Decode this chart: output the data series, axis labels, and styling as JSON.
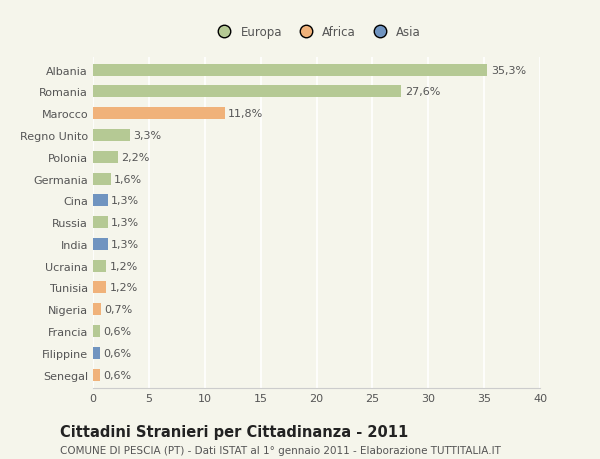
{
  "countries": [
    "Albania",
    "Romania",
    "Marocco",
    "Regno Unito",
    "Polonia",
    "Germania",
    "Cina",
    "Russia",
    "India",
    "Ucraina",
    "Tunisia",
    "Nigeria",
    "Francia",
    "Filippine",
    "Senegal"
  ],
  "values": [
    35.3,
    27.6,
    11.8,
    3.3,
    2.2,
    1.6,
    1.3,
    1.3,
    1.3,
    1.2,
    1.2,
    0.7,
    0.6,
    0.6,
    0.6
  ],
  "labels": [
    "35,3%",
    "27,6%",
    "11,8%",
    "3,3%",
    "2,2%",
    "1,6%",
    "1,3%",
    "1,3%",
    "1,3%",
    "1,2%",
    "1,2%",
    "0,7%",
    "0,6%",
    "0,6%",
    "0,6%"
  ],
  "continents": [
    "Europa",
    "Europa",
    "Africa",
    "Europa",
    "Europa",
    "Europa",
    "Asia",
    "Europa",
    "Asia",
    "Europa",
    "Africa",
    "Africa",
    "Europa",
    "Asia",
    "Africa"
  ],
  "colors": {
    "Europa": "#b5c994",
    "Africa": "#f0b27a",
    "Asia": "#7094c0"
  },
  "xlim": [
    0,
    40
  ],
  "xticks": [
    0,
    5,
    10,
    15,
    20,
    25,
    30,
    35,
    40
  ],
  "title": "Cittadini Stranieri per Cittadinanza - 2011",
  "subtitle": "COMUNE DI PESCIA (PT) - Dati ISTAT al 1° gennaio 2011 - Elaborazione TUTTITALIA.IT",
  "background_color": "#f5f5eb",
  "grid_color": "#ffffff",
  "bar_height": 0.55,
  "label_fontsize": 8,
  "ytick_fontsize": 8,
  "xtick_fontsize": 8,
  "title_fontsize": 10.5,
  "subtitle_fontsize": 7.5,
  "legend_fontsize": 8.5,
  "text_color": "#555555",
  "title_color": "#222222"
}
